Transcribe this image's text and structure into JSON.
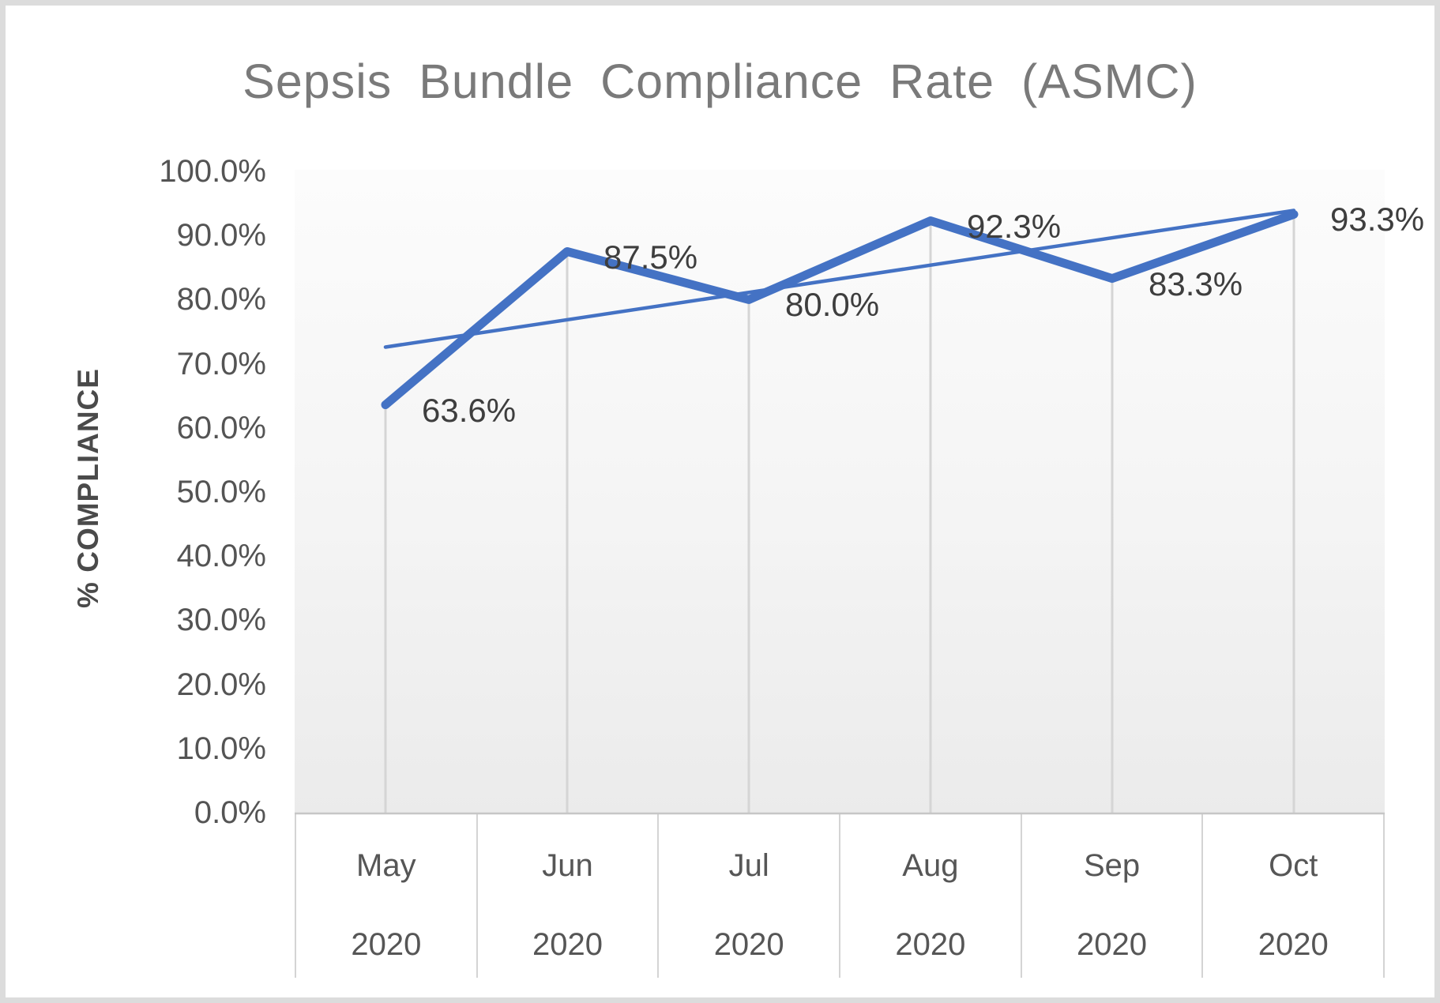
{
  "window": {
    "background": "#ffffff",
    "frame_border_color": "#dcdcdc"
  },
  "chart_data": {
    "type": "line",
    "title": "Sepsis Bundle Compliance Rate (ASMC)",
    "xlabel": "",
    "ylabel": "% COMPLIANCE",
    "ylim": [
      0,
      100
    ],
    "grid": "off",
    "legend": "none",
    "plot_background": "light-gray-gradient",
    "y_ticks": [
      {
        "value": 100,
        "label": "100.0%"
      },
      {
        "value": 90,
        "label": "90.0%"
      },
      {
        "value": 80,
        "label": "80.0%"
      },
      {
        "value": 70,
        "label": "70.0%"
      },
      {
        "value": 60,
        "label": "60.0%"
      },
      {
        "value": 50,
        "label": "50.0%"
      },
      {
        "value": 40,
        "label": "40.0%"
      },
      {
        "value": 30,
        "label": "30.0%"
      },
      {
        "value": 20,
        "label": "20.0%"
      },
      {
        "value": 10,
        "label": "10.0%"
      },
      {
        "value": 0,
        "label": "0.0%"
      }
    ],
    "categories": [
      {
        "month": "May",
        "year": "2020"
      },
      {
        "month": "Jun",
        "year": "2020"
      },
      {
        "month": "Jul",
        "year": "2020"
      },
      {
        "month": "Aug",
        "year": "2020"
      },
      {
        "month": "Sep",
        "year": "2020"
      },
      {
        "month": "Oct",
        "year": "2020"
      }
    ],
    "series": [
      {
        "name": "Sepsis Bundle Compliance Rate",
        "values": [
          63.6,
          87.5,
          80.0,
          92.3,
          83.3,
          93.3
        ],
        "data_labels": [
          "63.6%",
          "87.5%",
          "80.0%",
          "92.3%",
          "83.3%",
          "93.3%"
        ],
        "color": "#4472c4",
        "line_width": 11
      }
    ],
    "trendline": {
      "type": "linear",
      "start_value": 72.6,
      "end_value": 93.9,
      "color": "#4472c4",
      "line_width": 4.5
    },
    "drop_lines": {
      "enabled": true,
      "color": "#d5d5d5"
    },
    "axis_line_color": "#c6c6c6",
    "colors": {
      "title": "#7a7a7a",
      "tick_labels": "#545454",
      "category_labels": "#565656",
      "data_labels": "#3e3e3e",
      "accent": "#4472c4"
    }
  }
}
